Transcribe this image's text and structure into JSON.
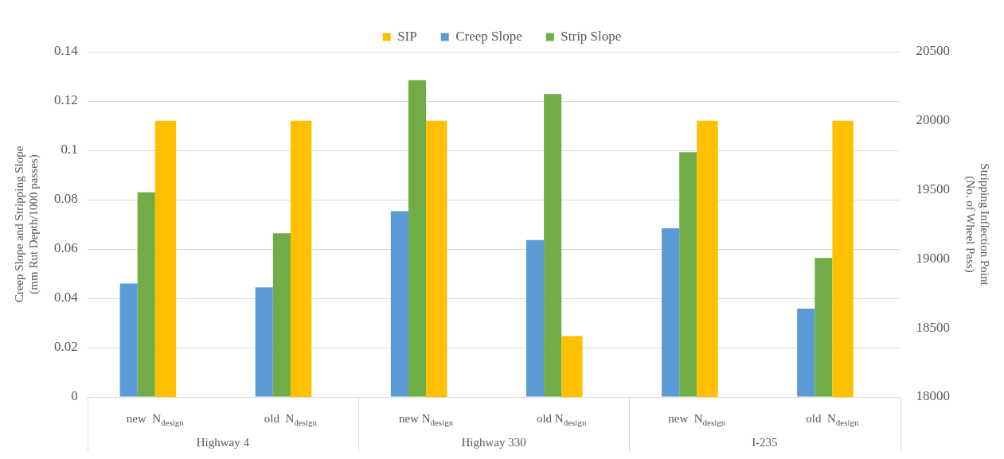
{
  "chart_data": {
    "type": "bar",
    "ylabel": "Creep Slope and Stripping Slope\n(mm Rut Depth/1000 passes)",
    "y2label": "Stripping Inflection Point\n(No. of Wheel Pass)",
    "categories": [
      "new  N$_{design}$",
      "old  N$_{design}$",
      "new N$_{design}$",
      "old N$_{design}$",
      "new  N$_{design}$",
      "old  N$_{design}$"
    ],
    "annotations": [
      "Highway 4",
      "Highway 330",
      "I-235"
    ],
    "series": [
      {
        "name": "Creep Slope",
        "color": "#5b9bd5",
        "values": [
          0.046,
          0.0444,
          0.0753,
          0.0636,
          0.0684,
          0.0358
        ]
      },
      {
        "name": "Strip Slope",
        "color": "#70ad47",
        "values": [
          0.083,
          0.0664,
          0.1285,
          0.1228,
          0.0993,
          0.0564
        ]
      },
      {
        "name": "SIP",
        "color": "#ffc000",
        "axis": "y2",
        "values": [
          20000,
          20000,
          20000,
          18440,
          20000,
          20000
        ]
      }
    ],
    "ylim": [
      0,
      0.14
    ],
    "yticks": [
      0,
      0.02,
      0.04,
      0.06,
      0.08,
      0.1,
      0.12,
      0.14
    ],
    "y2lim": [
      18000,
      20500
    ],
    "y2ticks": [
      18000,
      18500,
      19000,
      19500,
      20000,
      20500
    ],
    "grid": "y",
    "legend": "top"
  }
}
